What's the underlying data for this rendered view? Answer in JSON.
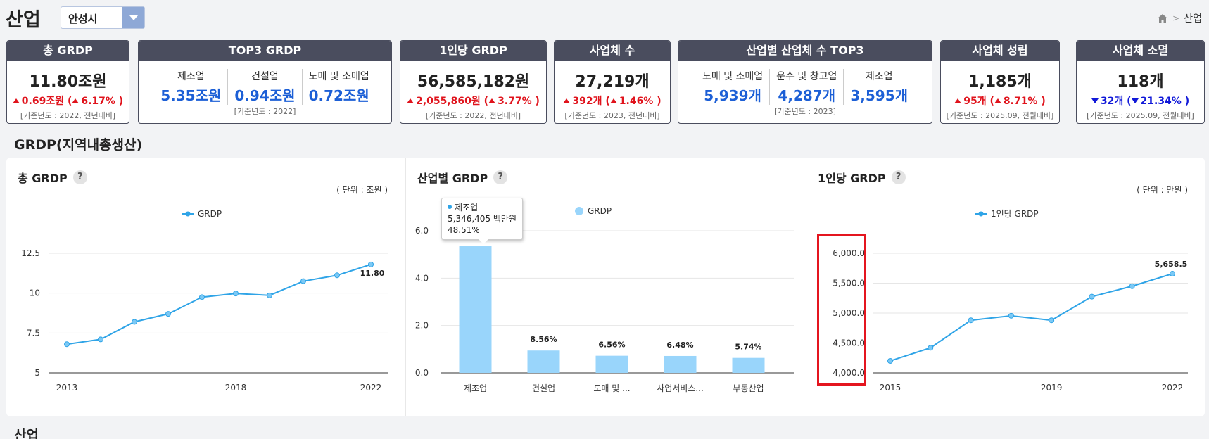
{
  "header": {
    "title": "산업",
    "region_select": "안성시",
    "breadcrumb": [
      "산업"
    ]
  },
  "kpis": {
    "total_grdp": {
      "title": "총 GRDP",
      "value": "11.80조원",
      "change": "0.69조원 (",
      "change_pct": "6.17% )",
      "direction": "up",
      "note": "[기준년도 : 2022, 전년대비]"
    },
    "top3_grdp": {
      "title": "TOP3 GRDP",
      "items": [
        {
          "label": "제조업",
          "value": "5.35조원"
        },
        {
          "label": "건설업",
          "value": "0.94조원"
        },
        {
          "label": "도매 및 소매업",
          "value": "0.72조원"
        }
      ],
      "note": "[기준년도 : 2022]"
    },
    "per_capita_grdp": {
      "title": "1인당 GRDP",
      "value": "56,585,182원",
      "change": "2,055,860원 (",
      "change_pct": "3.77% )",
      "direction": "up",
      "note": "[기준년도 : 2022, 전년대비]"
    },
    "business_count": {
      "title": "사업체 수",
      "value": "27,219개",
      "change": "392개 (",
      "change_pct": "1.46% )",
      "direction": "up",
      "note": "[기준년도 : 2023, 전년대비]"
    },
    "top3_business": {
      "title": "산업별 산업체 수 TOP3",
      "items": [
        {
          "label": "도매 및 소매업",
          "value": "5,939개"
        },
        {
          "label": "운수 및 창고업",
          "value": "4,287개"
        },
        {
          "label": "제조업",
          "value": "3,595개"
        }
      ],
      "note": "[기준년도 : 2023]"
    },
    "business_open": {
      "title": "사업체 성립",
      "value": "1,185개",
      "change": "95개 (",
      "change_pct": "8.71% )",
      "direction": "up",
      "note": "[기준년도 : 2025.09, 전월대비]"
    },
    "business_close": {
      "title": "사업체 소멸",
      "value": "118개",
      "change": "32개 (",
      "change_pct": "21.34% )",
      "direction": "down",
      "note": "[기준년도 : 2025.09, 전월대비]"
    }
  },
  "sections": {
    "grdp": "GRDP(지역내총생산)",
    "industry": "산업"
  },
  "charts": {
    "help_icon": "?",
    "total": {
      "title": "총 GRDP",
      "unit": "( 단위 : 조원 )"
    },
    "industry": {
      "title": "산업별 GRDP"
    },
    "per_capita": {
      "title": "1인당 GRDP",
      "unit": "( 단위 : 만원 )"
    }
  },
  "tooltip": {
    "name": "제조업",
    "value": "5,346,405 백만원",
    "pct": "48.51%"
  },
  "chart_data": [
    {
      "type": "line",
      "title": "총 GRDP",
      "series": [
        {
          "name": "GRDP",
          "values": [
            6.8,
            7.1,
            8.2,
            8.7,
            9.75,
            9.98,
            9.86,
            10.75,
            11.12,
            11.8
          ]
        }
      ],
      "x": [
        2013,
        2014,
        2015,
        2016,
        2017,
        2018,
        2019,
        2020,
        2021,
        2022
      ],
      "x_tick_labels": [
        "2013",
        "2018",
        "2022"
      ],
      "y_ticks": [
        "12.5",
        "10",
        "7.5",
        "5"
      ],
      "ylim": [
        5,
        12.5
      ],
      "data_labels": [
        {
          "index": 9,
          "text": "11.80"
        }
      ],
      "color": "#2fa4e7",
      "grid": true,
      "legend": "top"
    },
    {
      "type": "bar",
      "title": "산업별 GRDP",
      "categories": [
        "제조업",
        "건설업",
        "도매 및 ...",
        "사업서비스...",
        "부동산업"
      ],
      "series": [
        {
          "name": "GRDP",
          "values": [
            5.346,
            0.944,
            0.723,
            0.714,
            0.633
          ]
        }
      ],
      "data_labels": [
        "",
        "8.56%",
        "6.56%",
        "6.48%",
        "5.74%"
      ],
      "y_ticks": [
        "6.0",
        "4.0",
        "2.0",
        "0.0"
      ],
      "ylim": [
        0,
        6
      ],
      "color": "#99d5fb",
      "grid": true,
      "legend": "top"
    },
    {
      "type": "line",
      "title": "1인당 GRDP",
      "series": [
        {
          "name": "1인당 GRDP",
          "values": [
            4200,
            4420,
            4880,
            4955,
            4880,
            5275,
            5450,
            5658.5
          ]
        }
      ],
      "x": [
        2015,
        2016,
        2017,
        2018,
        2019,
        2020,
        2021,
        2022
      ],
      "x_tick_labels": [
        "2015",
        "2019",
        "2022"
      ],
      "y_ticks": [
        "6,000.0",
        "5,500.0",
        "5,000.0",
        "4,500.0",
        "4,000.0"
      ],
      "ylim": [
        4000,
        6000
      ],
      "data_labels": [
        {
          "index": 7,
          "text": "5,658.5"
        }
      ],
      "color": "#2fa4e7",
      "grid": true,
      "legend": "top"
    }
  ]
}
